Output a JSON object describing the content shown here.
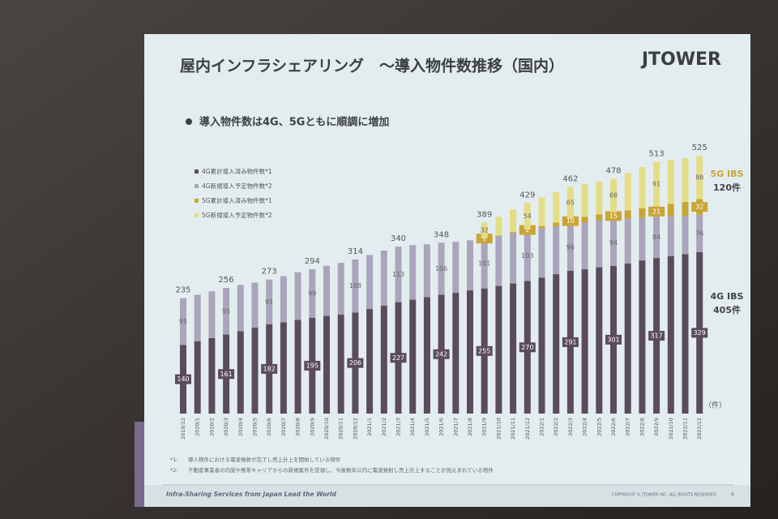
{
  "chart_data": {
    "type": "stacked_bar",
    "title": "屋内インフラシェアリング　～導入物件数推移（国内）",
    "subtitle": "導入物件数は4G、5Gともに順調に増加",
    "unit_label": "（件）",
    "legend_position": "upper left",
    "ylim": [
      0,
      560
    ],
    "categories": [
      "2019/12",
      "2020/1",
      "2020/2",
      "2020/3",
      "2020/4",
      "2020/5",
      "2020/6",
      "2020/7",
      "2020/8",
      "2020/9",
      "2020/10",
      "2020/11",
      "2020/12",
      "2021/1",
      "2021/2",
      "2021/3",
      "2021/4",
      "2021/5",
      "2021/6",
      "2021/7",
      "2021/8",
      "2021/9",
      "2021/10",
      "2021/11",
      "2021/12",
      "2022/1",
      "2022/2",
      "2022/3",
      "2022/4",
      "2022/5",
      "2022/6",
      "2022/7",
      "2022/8",
      "2022/9",
      "2022/10",
      "2022/11",
      "2022/12"
    ],
    "series": [
      {
        "name": "4G累計導入済み物件数*1",
        "color": "#5b4b5c",
        "values": [
          140,
          147,
          154,
          161,
          168,
          175,
          182,
          186,
          191,
          195,
          199,
          202,
          206,
          213,
          220,
          227,
          232,
          237,
          242,
          246,
          251,
          255,
          260,
          265,
          270,
          277,
          284,
          291,
          294,
          298,
          301,
          306,
          312,
          317,
          321,
          325,
          329
        ],
        "value_labels": [
          "140",
          null,
          null,
          "161",
          null,
          null,
          "182",
          null,
          null,
          "195",
          null,
          null,
          "206",
          null,
          null,
          "227",
          null,
          null,
          "242",
          null,
          null,
          "255",
          null,
          null,
          "270",
          null,
          null,
          "291",
          null,
          null,
          "301",
          null,
          null,
          "317",
          null,
          null,
          "329"
        ]
      },
      {
        "name": "4G新規導入予定物件数*2",
        "color": "#aaa5ba",
        "values": [
          95,
          95,
          95,
          95,
          94,
          92,
          91,
          94,
          97,
          99,
          102,
          105,
          108,
          110,
          112,
          113,
          111,
          108,
          106,
          104,
          102,
          101,
          102,
          103,
          103,
          101,
          98,
          96,
          95,
          95,
          94,
          91,
          87,
          84,
          81,
          78,
          76
        ],
        "value_labels": [
          "95",
          null,
          null,
          "95",
          null,
          null,
          "91",
          null,
          null,
          "99",
          null,
          null,
          "108",
          null,
          null,
          "113",
          null,
          null,
          "106",
          null,
          null,
          "101",
          null,
          null,
          "103",
          null,
          null,
          "96",
          null,
          null,
          "94",
          null,
          null,
          "84",
          null,
          null,
          "76"
        ]
      },
      {
        "name": "5G累計導入済み物件数*1",
        "color": "#c9a535",
        "values": [
          0,
          0,
          0,
          0,
          0,
          0,
          0,
          0,
          0,
          0,
          0,
          0,
          0,
          0,
          0,
          0,
          0,
          0,
          0,
          0,
          0,
          1,
          1,
          2,
          2,
          4,
          7,
          10,
          12,
          13,
          15,
          17,
          19,
          21,
          25,
          28,
          32
        ],
        "value_labels": [
          null,
          null,
          null,
          null,
          null,
          null,
          null,
          null,
          null,
          null,
          null,
          null,
          null,
          null,
          null,
          null,
          null,
          null,
          null,
          null,
          null,
          "1",
          null,
          null,
          "2",
          null,
          null,
          "10",
          null,
          null,
          "15",
          null,
          null,
          "21",
          null,
          null,
          "32"
        ]
      },
      {
        "name": "5G新規導入予定物件数*2",
        "color": "#e3de86",
        "values": [
          0,
          0,
          0,
          0,
          0,
          0,
          0,
          0,
          0,
          0,
          0,
          0,
          0,
          0,
          0,
          0,
          0,
          0,
          0,
          0,
          0,
          32,
          38,
          46,
          54,
          58,
          62,
          65,
          66,
          67,
          68,
          76,
          84,
          91,
          90,
          89,
          88
        ],
        "value_labels": [
          null,
          null,
          null,
          null,
          null,
          null,
          null,
          null,
          null,
          null,
          null,
          null,
          null,
          null,
          null,
          null,
          null,
          null,
          null,
          null,
          null,
          "32",
          null,
          null,
          "54",
          null,
          null,
          "65",
          null,
          null,
          "68",
          null,
          null,
          "91",
          null,
          null,
          "88"
        ]
      }
    ],
    "totals": [
      235,
      null,
      null,
      256,
      null,
      null,
      273,
      null,
      null,
      294,
      null,
      null,
      314,
      null,
      null,
      340,
      null,
      null,
      348,
      null,
      null,
      389,
      null,
      null,
      429,
      null,
      null,
      462,
      null,
      null,
      478,
      null,
      null,
      513,
      null,
      null,
      525
    ],
    "annotations": [
      {
        "label": "5G IBS",
        "sub": "120件"
      },
      {
        "label": "4G IBS",
        "sub": "405件"
      }
    ]
  },
  "slide": {
    "logo": "JTOWER",
    "footnotes": [
      {
        "mark": "*1:",
        "text": "導入物件における電波発射が完了し売上計上を開始している物件"
      },
      {
        "mark": "*2:",
        "text": "不動産事業者の内諾や携帯キャリアからの新規案件を受領し、今後数年以内に電波発射し売上計上することが見込まれている物件"
      }
    ],
    "footer": "Infra-Sharing Services from Japan Lead the World",
    "copyright": "COPYRIGHT © JTOWER INC. ALL RIGHTS RESERVED.",
    "page": "6"
  }
}
